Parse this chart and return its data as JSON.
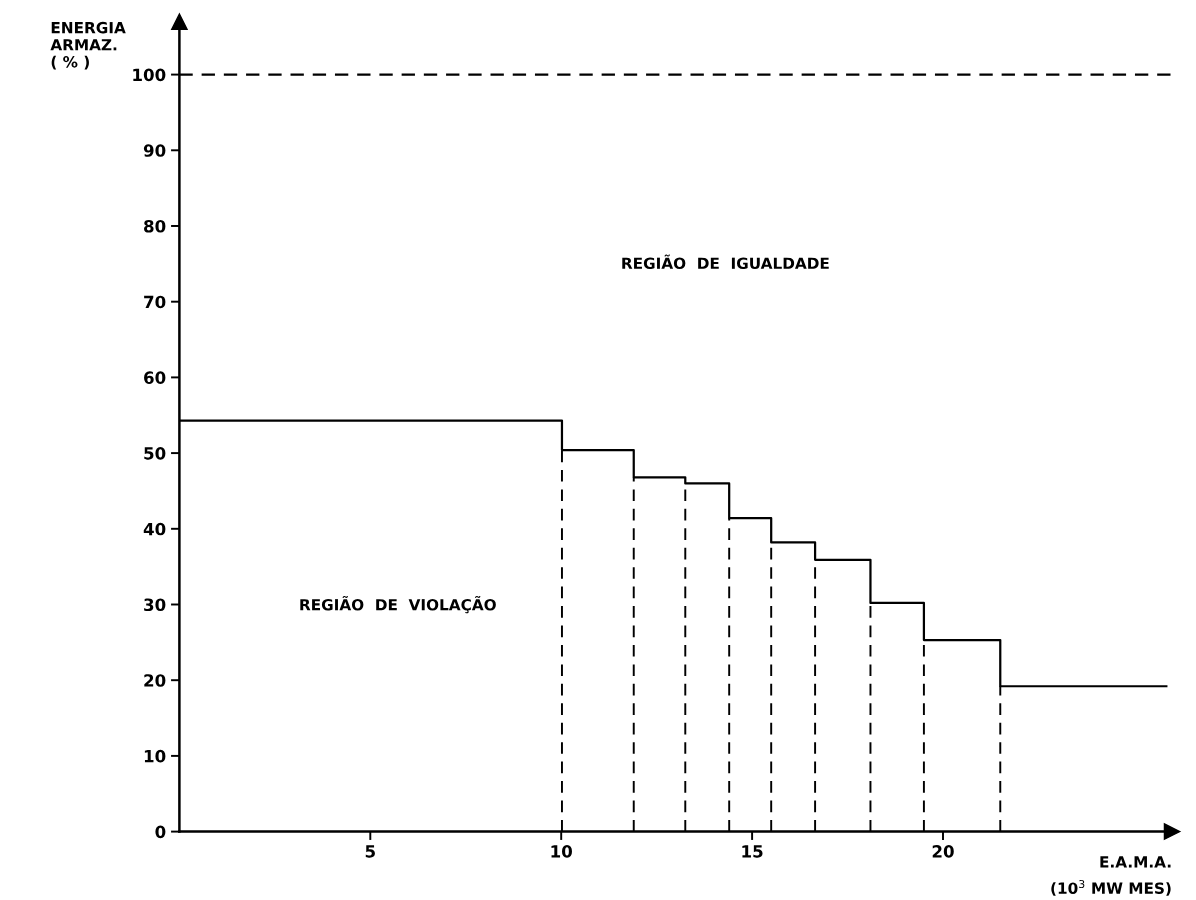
{
  "chart_data": {
    "type": "step",
    "xlabel": "E.A.M.A.\n(10$^{3}$ MW MES)",
    "ylabel": "ENERGIA\nARMAZ.\n( % )",
    "annotations": [
      "REGIÃO  DE  IGUALDADE",
      "REGIÃO  DE  VIOLAÇÃO"
    ],
    "series": [
      {
        "color": "#000000",
        "x": [
          0,
          10.02,
          11.9,
          13.25,
          14.4,
          15.5,
          16.65,
          18.1,
          19.5,
          21.5,
          25.85
        ],
        "values": [
          54.3,
          50.4,
          46.8,
          46.0,
          41.4,
          38.2,
          35.9,
          30.2,
          25.3,
          19.2,
          19.2
        ]
      },
      {
        "type": "line",
        "line_style": "dashed",
        "color": "#000000",
        "x": [
          10.02,
          10.02
        ],
        "values": [
          0,
          50.4
        ]
      },
      {
        "type": "line",
        "line_style": "dashed",
        "color": "#000000",
        "x": [
          11.9,
          11.9
        ],
        "values": [
          0,
          46.8
        ]
      },
      {
        "type": "line",
        "line_style": "dashed",
        "color": "#000000",
        "x": [
          13.25,
          13.25
        ],
        "values": [
          0,
          46.0
        ]
      },
      {
        "type": "line",
        "line_style": "dashed",
        "color": "#000000",
        "x": [
          14.4,
          14.4
        ],
        "values": [
          0,
          41.4
        ]
      },
      {
        "type": "line",
        "line_style": "dashed",
        "color": "#000000",
        "x": [
          15.5,
          15.5
        ],
        "values": [
          0,
          38.2
        ]
      },
      {
        "type": "line",
        "line_style": "dashed",
        "color": "#000000",
        "x": [
          16.65,
          16.65
        ],
        "values": [
          0,
          35.9
        ]
      },
      {
        "type": "line",
        "line_style": "dashed",
        "color": "#000000",
        "x": [
          18.1,
          18.1
        ],
        "values": [
          0,
          30.2
        ]
      },
      {
        "type": "line",
        "line_style": "dashed",
        "color": "#000000",
        "x": [
          19.5,
          19.5
        ],
        "values": [
          0,
          25.3
        ]
      },
      {
        "type": "line",
        "line_style": "dashed",
        "color": "#000000",
        "x": [
          21.5,
          21.5
        ],
        "values": [
          0,
          19.2
        ]
      }
    ],
    "ref_lines": [
      {
        "axis": "y",
        "value": 100,
        "line_style": "dashed",
        "color": "#000000"
      }
    ],
    "xlim": [
      0,
      26
    ],
    "ylim": [
      0,
      107
    ],
    "xticks": [
      5,
      10,
      15,
      20
    ],
    "yticks": [
      0,
      10,
      20,
      30,
      40,
      50,
      60,
      70,
      80,
      90,
      100
    ],
    "grid": false,
    "legend": false
  }
}
